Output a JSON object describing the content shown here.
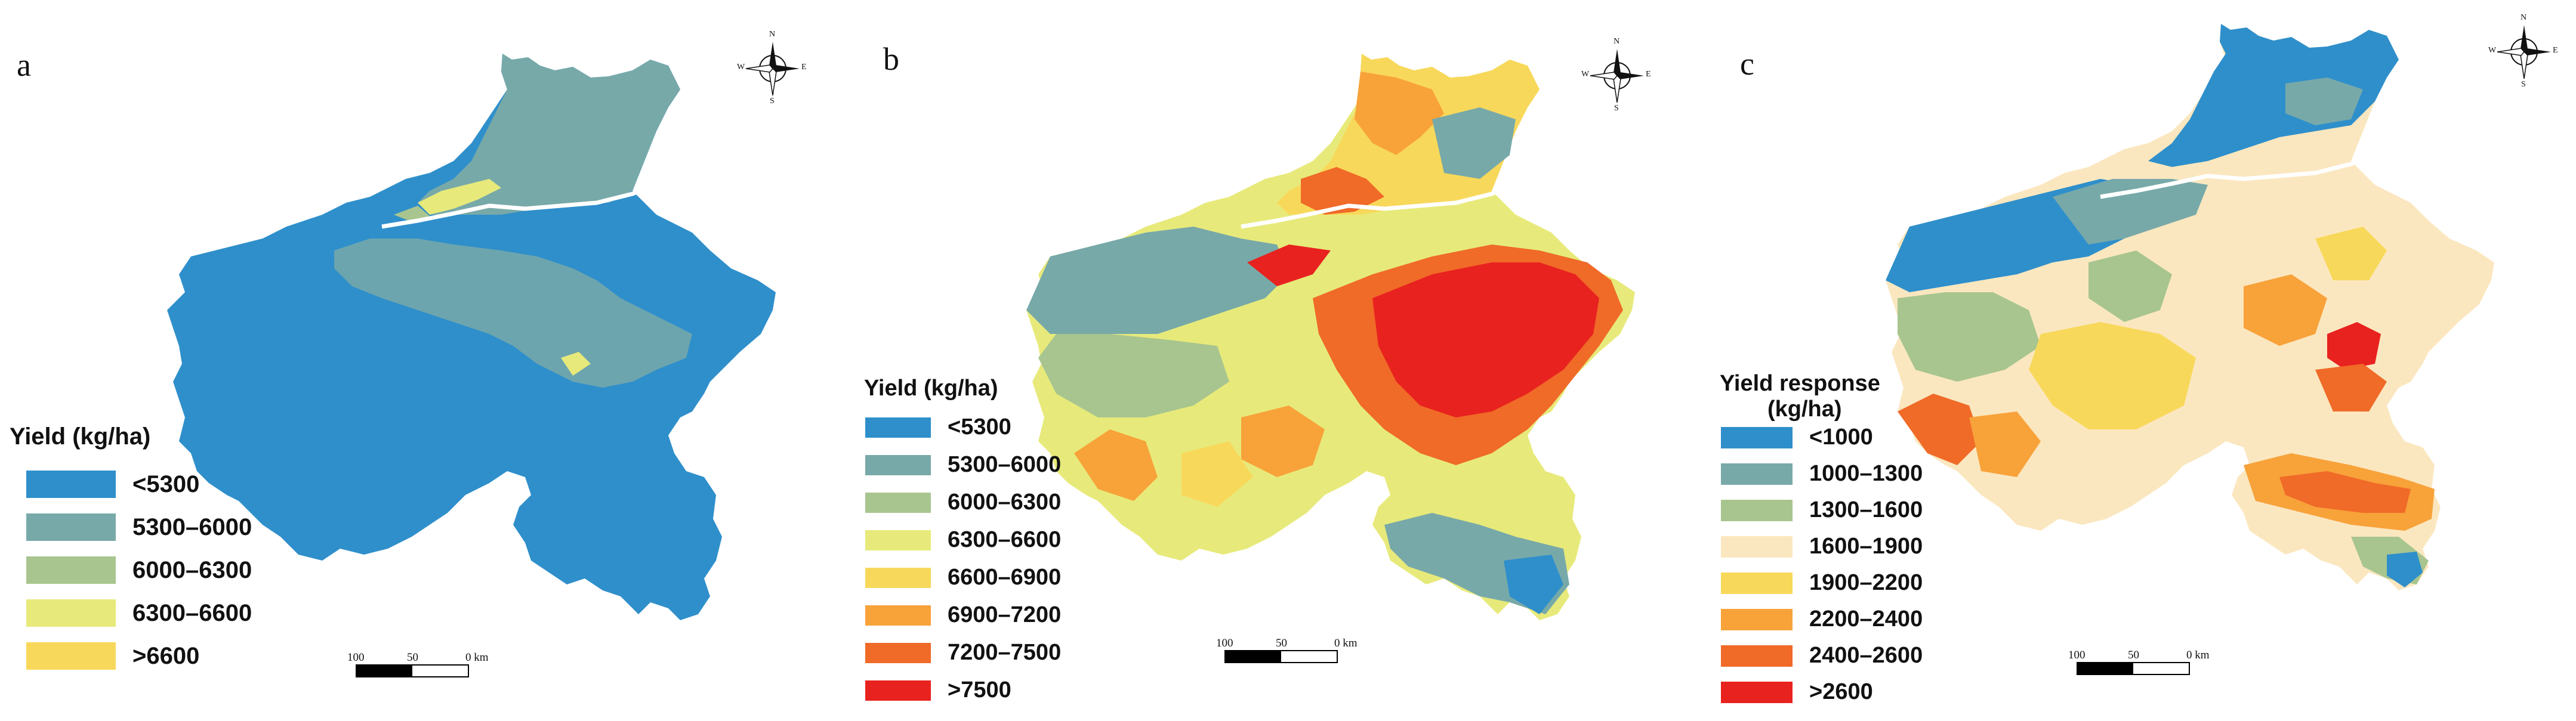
{
  "panels": [
    {
      "letter": "a",
      "legend_title_lines": [
        "Yield  (kg/ha)"
      ],
      "legend": [
        {
          "label": "<5300",
          "color": "#2f8fcb"
        },
        {
          "label": "5300–6000",
          "color": "#78a9a9"
        },
        {
          "label": "6000–6300",
          "color": "#a8c58f"
        },
        {
          "label": "6300–6600",
          "color": "#e7ea7a"
        },
        {
          "label": ">6600",
          "color": "#f8d85a"
        }
      ],
      "scale": {
        "labels": [
          "100",
          "50",
          "0 km"
        ]
      },
      "compass": {
        "n": "N",
        "s": "S",
        "e": "E",
        "w": "W"
      }
    },
    {
      "letter": "b",
      "legend_title_lines": [
        "Yield  (kg/ha)"
      ],
      "legend": [
        {
          "label": "<5300",
          "color": "#2f8fcb"
        },
        {
          "label": "5300–6000",
          "color": "#78a9a9"
        },
        {
          "label": "6000–6300",
          "color": "#a8c58f"
        },
        {
          "label": "6300–6600",
          "color": "#e7ea7a"
        },
        {
          "label": "6600–6900",
          "color": "#f8d85a"
        },
        {
          "label": "6900–7200",
          "color": "#f8a23a"
        },
        {
          "label": "7200–7500",
          "color": "#f06a28"
        },
        {
          "label": ">7500",
          "color": "#e8221f"
        }
      ],
      "scale": {
        "labels": [
          "100",
          "50",
          "0 km"
        ]
      },
      "compass": {
        "n": "N",
        "s": "S",
        "e": "E",
        "w": "W"
      }
    },
    {
      "letter": "c",
      "legend_title_lines": [
        "Yield response",
        "(kg/ha)"
      ],
      "legend": [
        {
          "label": "<1000",
          "color": "#2f8fcb"
        },
        {
          "label": "1000–1300",
          "color": "#78a9a9"
        },
        {
          "label": "1300–1600",
          "color": "#a8c58f"
        },
        {
          "label": "1600–1900",
          "color": "#fbe7bf"
        },
        {
          "label": "1900–2200",
          "color": "#f8d85a"
        },
        {
          "label": "2200–2400",
          "color": "#f8a23a"
        },
        {
          "label": "2400–2600",
          "color": "#f06a28"
        },
        {
          "label": ">2600",
          "color": "#e8221f"
        }
      ],
      "scale": {
        "labels": [
          "100",
          "50",
          "0 km"
        ]
      },
      "compass": {
        "n": "N",
        "s": "S",
        "e": "E",
        "w": "W"
      }
    }
  ]
}
